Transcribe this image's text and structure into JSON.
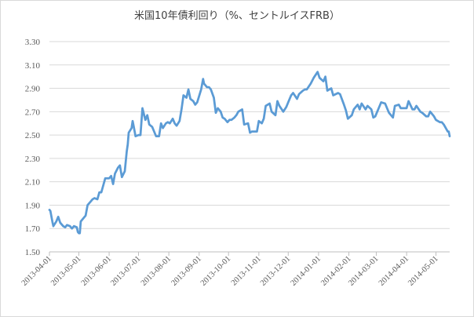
{
  "chart_data": {
    "type": "line",
    "title": "米国10年債利回り（%、セントルイスFRB）",
    "xlabel": "",
    "ylabel": "",
    "ylim": [
      1.5,
      3.3
    ],
    "y_ticks": [
      "1.50",
      "1.70",
      "1.90",
      "2.10",
      "2.30",
      "2.50",
      "2.70",
      "2.90",
      "3.10",
      "3.30"
    ],
    "x_ticks": [
      "2013-04-01",
      "2013-05-01",
      "2013-06-01",
      "2013-07-01",
      "2013-08-01",
      "2013-09-01",
      "2013-10-01",
      "2013-11-01",
      "2013-12-01",
      "2014-01-01",
      "2014-02-01",
      "2014-03-01",
      "2014-04-01",
      "2014-05-01"
    ],
    "grid": true,
    "line_color": "#5b9bd5",
    "series": [
      {
        "x": [
          "2013-04-01",
          "2013-04-02",
          "2013-04-04",
          "2013-04-05",
          "2013-04-08",
          "2013-04-10",
          "2013-04-12",
          "2013-04-15",
          "2013-04-17",
          "2013-04-19",
          "2013-04-22",
          "2013-04-24",
          "2013-04-26",
          "2013-04-29",
          "2013-04-30",
          "2013-05-01",
          "2013-05-02",
          "2013-05-03",
          "2013-05-06",
          "2013-05-08",
          "2013-05-10",
          "2013-05-13",
          "2013-05-15",
          "2013-05-17",
          "2013-05-20",
          "2013-05-22",
          "2013-05-24",
          "2013-05-28",
          "2013-05-30",
          "2013-06-01",
          "2013-06-03",
          "2013-06-05",
          "2013-06-07",
          "2013-06-10",
          "2013-06-12",
          "2013-06-14",
          "2013-06-17",
          "2013-06-19",
          "2013-06-20",
          "2013-06-21",
          "2013-06-24",
          "2013-06-25",
          "2013-06-26",
          "2013-06-28",
          "2013-07-01",
          "2013-07-03",
          "2013-07-05",
          "2013-07-08",
          "2013-07-10",
          "2013-07-12",
          "2013-07-15",
          "2013-07-17",
          "2013-07-19",
          "2013-07-22",
          "2013-07-24",
          "2013-07-26",
          "2013-07-29",
          "2013-07-31",
          "2013-08-02",
          "2013-08-05",
          "2013-08-07",
          "2013-08-09",
          "2013-08-12",
          "2013-08-14",
          "2013-08-16",
          "2013-08-19",
          "2013-08-21",
          "2013-08-23",
          "2013-08-26",
          "2013-08-28",
          "2013-08-30",
          "2013-09-03",
          "2013-09-05",
          "2013-09-06",
          "2013-09-09",
          "2013-09-11",
          "2013-09-13",
          "2013-09-16",
          "2013-09-18",
          "2013-09-20",
          "2013-09-23",
          "2013-09-25",
          "2013-09-27",
          "2013-09-30",
          "2013-10-02",
          "2013-10-04",
          "2013-10-07",
          "2013-10-09",
          "2013-10-11",
          "2013-10-15",
          "2013-10-17",
          "2013-10-21",
          "2013-10-23",
          "2013-10-25",
          "2013-10-28",
          "2013-10-30",
          "2013-11-01",
          "2013-11-04",
          "2013-11-06",
          "2013-11-08",
          "2013-11-12",
          "2013-11-14",
          "2013-11-18",
          "2013-11-20",
          "2013-11-22",
          "2013-11-26",
          "2013-11-29",
          "2013-12-02",
          "2013-12-04",
          "2013-12-06",
          "2013-12-10",
          "2013-12-12",
          "2013-12-16",
          "2013-12-18",
          "2013-12-20",
          "2013-12-24",
          "2013-12-27",
          "2013-12-31",
          "2014-01-02",
          "2014-01-06",
          "2014-01-08",
          "2014-01-10",
          "2014-01-14",
          "2014-01-16",
          "2014-01-21",
          "2014-01-23",
          "2014-01-27",
          "2014-01-29",
          "2014-01-31",
          "2014-02-04",
          "2014-02-06",
          "2014-02-10",
          "2014-02-12",
          "2014-02-14",
          "2014-02-18",
          "2014-02-20",
          "2014-02-24",
          "2014-02-26",
          "2014-02-28",
          "2014-03-04",
          "2014-03-06",
          "2014-03-10",
          "2014-03-12",
          "2014-03-14",
          "2014-03-18",
          "2014-03-20",
          "2014-03-24",
          "2014-03-26",
          "2014-03-28",
          "2014-04-01",
          "2014-04-03",
          "2014-04-07",
          "2014-04-09",
          "2014-04-11",
          "2014-04-15",
          "2014-04-17",
          "2014-04-21",
          "2014-04-23",
          "2014-04-25",
          "2014-04-29",
          "2014-05-01",
          "2014-05-05",
          "2014-05-07",
          "2014-05-09",
          "2014-05-13",
          "2014-05-14",
          "2014-05-15"
        ],
        "values": [
          1.86,
          1.85,
          1.76,
          1.72,
          1.76,
          1.8,
          1.75,
          1.72,
          1.71,
          1.73,
          1.72,
          1.7,
          1.72,
          1.71,
          1.67,
          1.66,
          1.66,
          1.76,
          1.79,
          1.81,
          1.9,
          1.93,
          1.95,
          1.96,
          1.95,
          2.01,
          2.01,
          2.13,
          2.13,
          2.13,
          2.15,
          2.08,
          2.17,
          2.22,
          2.24,
          2.14,
          2.19,
          2.36,
          2.42,
          2.52,
          2.56,
          2.62,
          2.58,
          2.49,
          2.5,
          2.5,
          2.73,
          2.63,
          2.67,
          2.59,
          2.57,
          2.53,
          2.49,
          2.49,
          2.6,
          2.56,
          2.6,
          2.61,
          2.6,
          2.64,
          2.6,
          2.58,
          2.62,
          2.72,
          2.84,
          2.82,
          2.89,
          2.81,
          2.79,
          2.76,
          2.78,
          2.89,
          2.98,
          2.94,
          2.91,
          2.91,
          2.89,
          2.82,
          2.69,
          2.73,
          2.7,
          2.65,
          2.64,
          2.61,
          2.63,
          2.63,
          2.65,
          2.67,
          2.7,
          2.72,
          2.59,
          2.6,
          2.52,
          2.53,
          2.53,
          2.53,
          2.62,
          2.6,
          2.64,
          2.75,
          2.77,
          2.7,
          2.67,
          2.79,
          2.75,
          2.7,
          2.74,
          2.8,
          2.84,
          2.86,
          2.81,
          2.85,
          2.88,
          2.89,
          2.89,
          2.94,
          2.99,
          3.04,
          2.99,
          2.96,
          3.0,
          2.88,
          2.9,
          2.84,
          2.86,
          2.85,
          2.76,
          2.71,
          2.64,
          2.67,
          2.72,
          2.76,
          2.72,
          2.77,
          2.72,
          2.75,
          2.72,
          2.65,
          2.66,
          2.74,
          2.78,
          2.77,
          2.73,
          2.69,
          2.65,
          2.75,
          2.76,
          2.73,
          2.73,
          2.73,
          2.79,
          2.72,
          2.72,
          2.75,
          2.7,
          2.69,
          2.66,
          2.66,
          2.7,
          2.66,
          2.63,
          2.61,
          2.61,
          2.59,
          2.53,
          2.53,
          2.49
        ]
      }
    ]
  }
}
